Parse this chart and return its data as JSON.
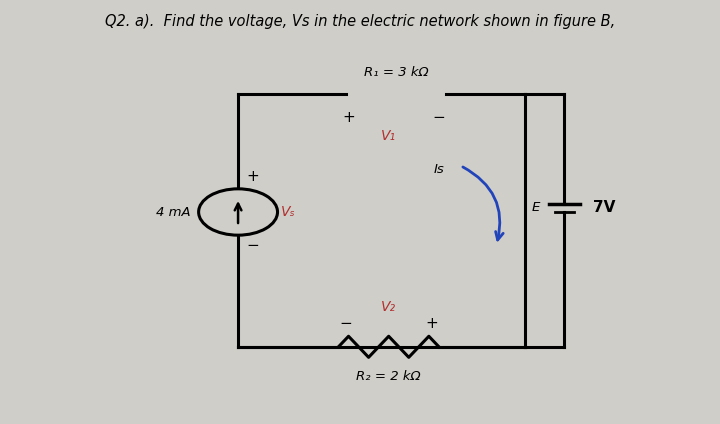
{
  "title": "Q2. a).  Find the voltage, Vs in the electric network shown in figure B,",
  "title_fontsize": 10.5,
  "bg_color": "#d0cec8",
  "text_color": "#000000",
  "label_color_red": "#b03030",
  "label_color_blue": "#2244bb",
  "R1_label": "R₁ = 3 kΩ",
  "R2_label": "R₂ = 2 kΩ",
  "V1_label": "V₁",
  "V2_label": "V₂",
  "Vs_label": "Vₛ",
  "Is_label": "Is",
  "E_label": "E",
  "source_label": "4 mA",
  "voltage_label": "7V",
  "bx_l": 0.33,
  "bx_r": 0.73,
  "bx_t": 0.78,
  "bx_b": 0.18
}
